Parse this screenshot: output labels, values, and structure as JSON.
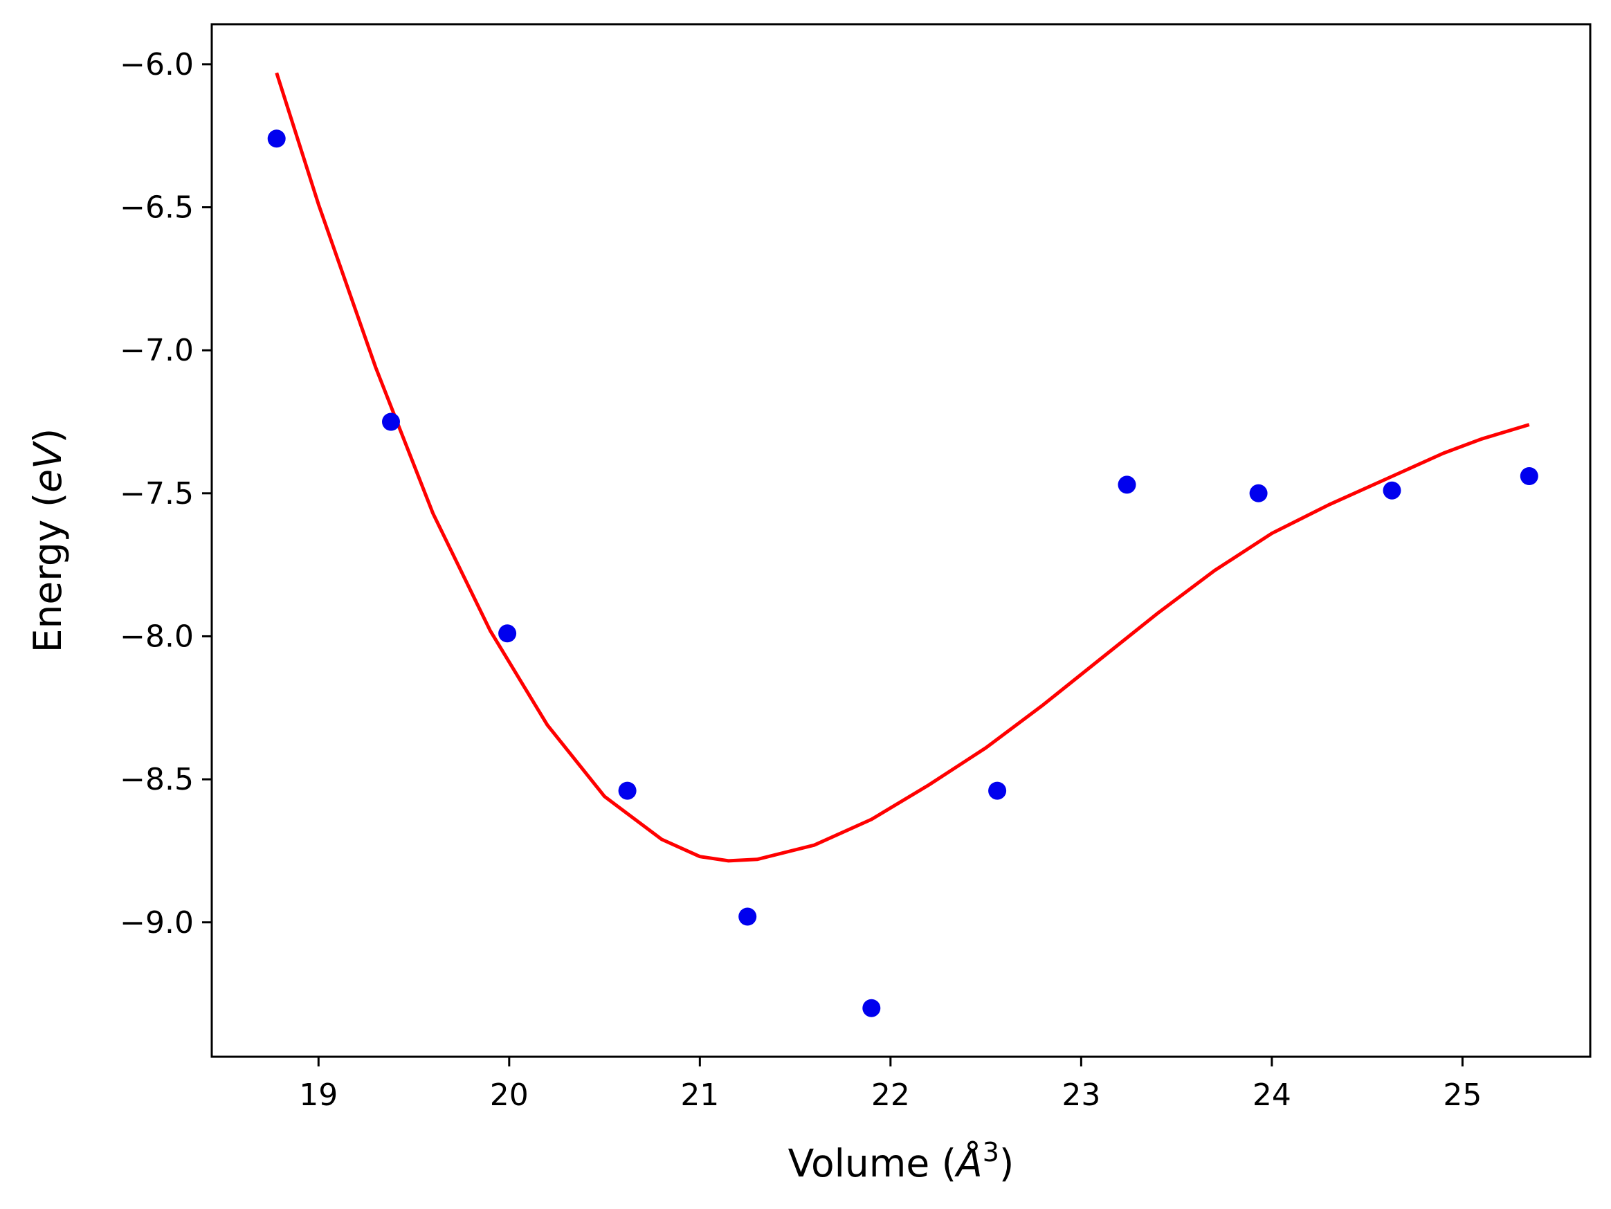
{
  "chart_data": {
    "type": "scatter",
    "title": "",
    "xlabel": {
      "prefix": "Volume (",
      "italic": "Å",
      "superscript": "3",
      "suffix": ")"
    },
    "ylabel": {
      "prefix": "Energy (",
      "italic": "eV",
      "suffix": ")"
    },
    "xlim": [
      18.44,
      25.67
    ],
    "ylim": [
      -9.47,
      -5.86
    ],
    "xticks": [
      19,
      20,
      21,
      22,
      23,
      24,
      25
    ],
    "xtick_labels": [
      "19",
      "20",
      "21",
      "22",
      "23",
      "24",
      "25"
    ],
    "yticks": [
      -6.0,
      -6.5,
      -7.0,
      -7.5,
      -8.0,
      -8.5,
      -9.0
    ],
    "ytick_labels": [
      "−6.0",
      "−6.5",
      "−7.0",
      "−7.5",
      "−8.0",
      "−8.5",
      "−9.0"
    ],
    "grid": false,
    "series": [
      {
        "kind": "points",
        "color": "#0000ee",
        "x": [
          18.78,
          19.38,
          19.99,
          20.62,
          21.25,
          21.9,
          22.56,
          23.24,
          23.93,
          24.63,
          25.35
        ],
        "y": [
          -6.26,
          -7.25,
          -7.99,
          -8.54,
          -8.98,
          -9.3,
          -8.54,
          -7.47,
          -7.5,
          -7.49,
          -7.44
        ]
      },
      {
        "kind": "line",
        "color": "#ff0000",
        "x": [
          18.78,
          19.0,
          19.3,
          19.6,
          19.9,
          20.2,
          20.5,
          20.8,
          21.0,
          21.15,
          21.3,
          21.6,
          21.9,
          22.2,
          22.5,
          22.8,
          23.1,
          23.4,
          23.7,
          24.0,
          24.3,
          24.6,
          24.9,
          25.1,
          25.35
        ],
        "y": [
          -6.03,
          -6.49,
          -7.06,
          -7.57,
          -7.98,
          -8.31,
          -8.56,
          -8.71,
          -8.77,
          -8.785,
          -8.78,
          -8.73,
          -8.64,
          -8.52,
          -8.39,
          -8.24,
          -8.08,
          -7.92,
          -7.77,
          -7.64,
          -7.54,
          -7.45,
          -7.36,
          -7.31,
          -7.26
        ]
      }
    ]
  }
}
